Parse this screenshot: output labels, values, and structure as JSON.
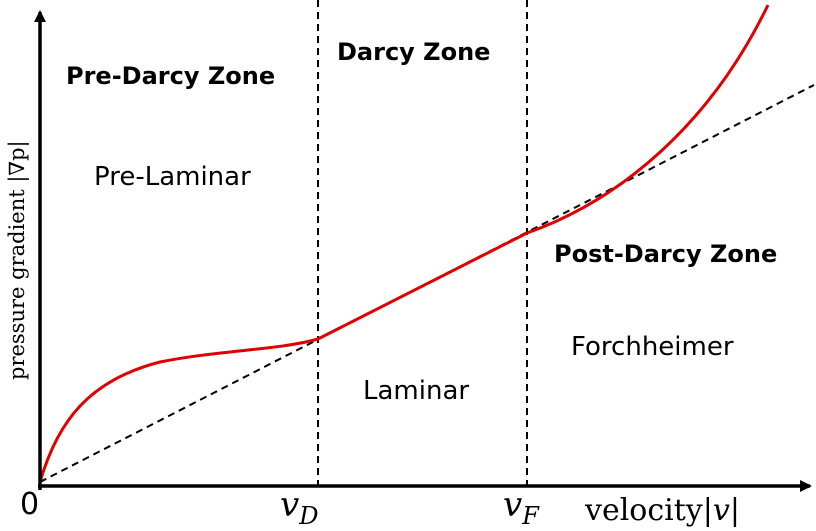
{
  "zones": {
    "pre_darcy": "Pre-Darcy Zone",
    "darcy": "Darcy Zone",
    "post_darcy": "Post-Darcy Zone"
  },
  "regimes": {
    "pre_laminar": "Pre-Laminar",
    "laminar": "Laminar",
    "forchheimer": "Forchheimer"
  },
  "axes": {
    "origin_label": "0",
    "x_label_text": "velocity",
    "x_label_var": "|v|",
    "y_label": "pressure gradient |∇p|",
    "vD_main": "v",
    "vD_sub": "D",
    "vF_main": "v",
    "vF_sub": "F"
  },
  "colors": {
    "curve": "#e00000",
    "axis": "#000000",
    "guide": "#000000"
  }
}
